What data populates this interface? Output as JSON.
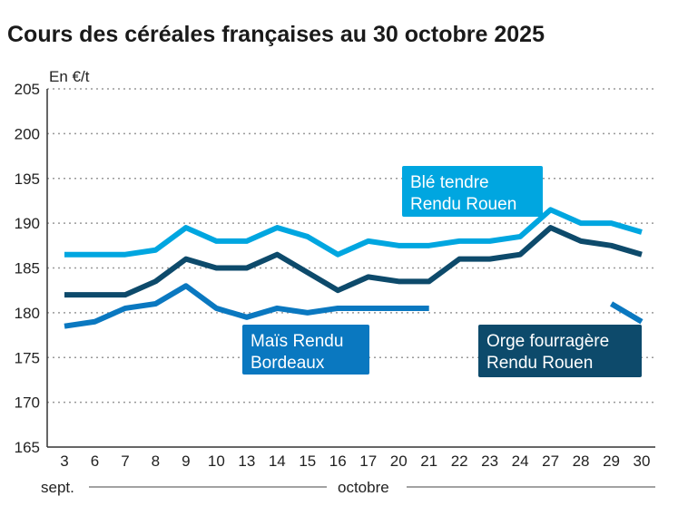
{
  "chart_data": {
    "type": "line",
    "title": "Cours des céréales françaises au 30 octobre 2025",
    "ylabel": "En €/t",
    "ylim": [
      165,
      205
    ],
    "yticks": [
      165,
      170,
      175,
      180,
      185,
      190,
      195,
      200,
      205
    ],
    "grid": true,
    "categories": [
      "3",
      "6",
      "7",
      "8",
      "9",
      "10",
      "13",
      "14",
      "15",
      "16",
      "17",
      "20",
      "21",
      "22",
      "23",
      "24",
      "27",
      "28",
      "29",
      "30"
    ],
    "month_labels": [
      "sept.",
      "octobre"
    ],
    "series": [
      {
        "name": "Blé tendre Rendu Rouen",
        "label_lines": [
          "Blé tendre",
          "Rendu Rouen"
        ],
        "color": "#00a6e0",
        "values": [
          186.5,
          186.5,
          186.5,
          187,
          189.5,
          188,
          188,
          189.5,
          188.5,
          186.5,
          188,
          187.5,
          187.5,
          188,
          188,
          188.5,
          191.5,
          190,
          190,
          189
        ]
      },
      {
        "name": "Orge fourragère Rendu Rouen",
        "label_lines": [
          "Orge fourragère",
          "Rendu Rouen"
        ],
        "color": "#0d4a6b",
        "values": [
          182,
          182,
          182,
          183.5,
          186,
          185,
          185,
          186.5,
          184.5,
          182.5,
          184,
          183.5,
          183.5,
          186,
          186,
          186.5,
          189.5,
          188,
          187.5,
          186.5
        ]
      },
      {
        "name": "Maïs Rendu Bordeaux",
        "label_lines": [
          "Maïs Rendu",
          "Bordeaux"
        ],
        "color": "#0a78c0",
        "values": [
          178.5,
          179,
          180.5,
          181,
          183,
          180.5,
          179.5,
          180.5,
          180,
          180.5,
          180.5,
          180.5,
          180.5,
          null,
          null,
          null,
          null,
          null,
          181,
          179
        ]
      }
    ]
  }
}
